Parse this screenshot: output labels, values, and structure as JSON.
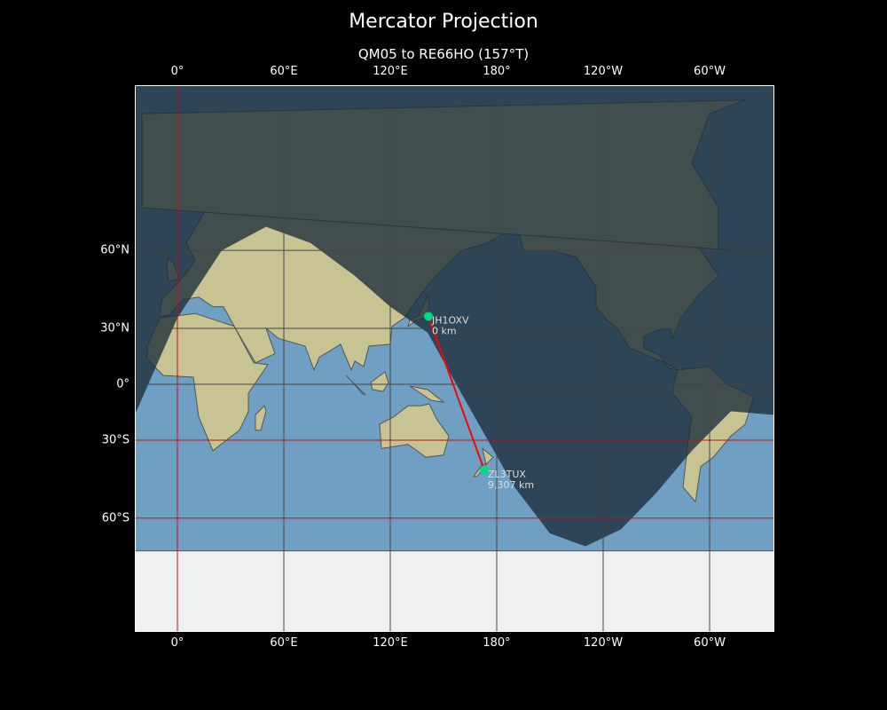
{
  "title": "Mercator Projection",
  "subtitle": "QM05 to RE66HO (157°T)",
  "map": {
    "projection": "mercator",
    "lon_range": [
      -24,
      336
    ],
    "lat_range": [
      -80,
      84
    ],
    "x_ticks": [
      {
        "lon": 0,
        "label": "0°"
      },
      {
        "lon": 60,
        "label": "60°E"
      },
      {
        "lon": 120,
        "label": "120°E"
      },
      {
        "lon": 180,
        "label": "180°"
      },
      {
        "lon": 240,
        "label": "120°W"
      },
      {
        "lon": 300,
        "label": "60°W"
      }
    ],
    "y_ticks": [
      {
        "lat": 60,
        "label": "60°N"
      },
      {
        "lat": 30,
        "label": "30°N"
      },
      {
        "lat": 0,
        "label": "0°"
      },
      {
        "lat": -30,
        "label": "30°S"
      },
      {
        "lat": -60,
        "label": "60°S"
      }
    ],
    "stations": [
      {
        "call": "JH1OXV",
        "distance": "0 km",
        "lon": 141.5,
        "lat": 35.7
      },
      {
        "call": "ZL3TUX",
        "distance": "9,307 km",
        "lon": 173,
        "lat": -43.5
      }
    ],
    "colors": {
      "path": "#ff0000",
      "marker": "#00d98b",
      "ocean": "#6f9fc2",
      "land": "#c8c393",
      "night": "#1c2b3a",
      "grid": "#444444",
      "grid_red": "#c01010"
    }
  }
}
